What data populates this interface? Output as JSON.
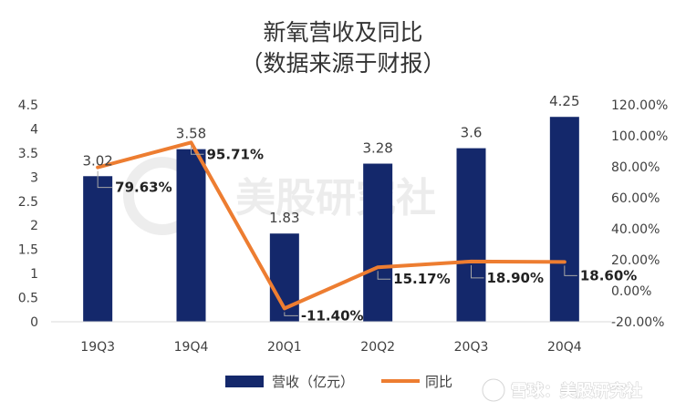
{
  "chart_data": {
    "type": "bar",
    "title": "新氧营收及同比",
    "subtitle": "（数据来源于财报）",
    "categories": [
      "19Q3",
      "19Q4",
      "20Q1",
      "20Q2",
      "20Q3",
      "20Q4"
    ],
    "series": [
      {
        "name": "营收（亿元）",
        "type": "bar",
        "axis": "left",
        "color": "#14286B",
        "values": [
          3.02,
          3.58,
          1.83,
          3.28,
          3.6,
          4.25
        ],
        "labels": [
          "3.02",
          "3.58",
          "1.83",
          "3.28",
          "3.6",
          "4.25"
        ]
      },
      {
        "name": "同比",
        "type": "line",
        "axis": "right",
        "color": "#ED7D31",
        "values": [
          79.63,
          95.71,
          -11.4,
          15.17,
          18.9,
          18.6
        ],
        "labels": [
          "79.63%",
          "95.71%",
          "-11.40%",
          "15.17%",
          "18.90%",
          "18.60%"
        ]
      }
    ],
    "y_left": {
      "ylim": [
        0,
        4.5
      ],
      "ticks": [
        "0",
        "0.5",
        "1",
        "1.5",
        "2",
        "2.5",
        "3",
        "3.5",
        "4",
        "4.5"
      ]
    },
    "y_right": {
      "ylim": [
        -20,
        120
      ],
      "ticks": [
        "-20.00%",
        "0.00%",
        "20.00%",
        "40.00%",
        "60.00%",
        "80.00%",
        "100.00%",
        "120.00%"
      ]
    },
    "grid": false,
    "legend": "bottom"
  },
  "watermark": {
    "text": "美股研究社"
  },
  "footer": {
    "logo": "雪球",
    "separator": "：",
    "source": "美股研究社",
    "text": "雪球：美股研究社"
  }
}
